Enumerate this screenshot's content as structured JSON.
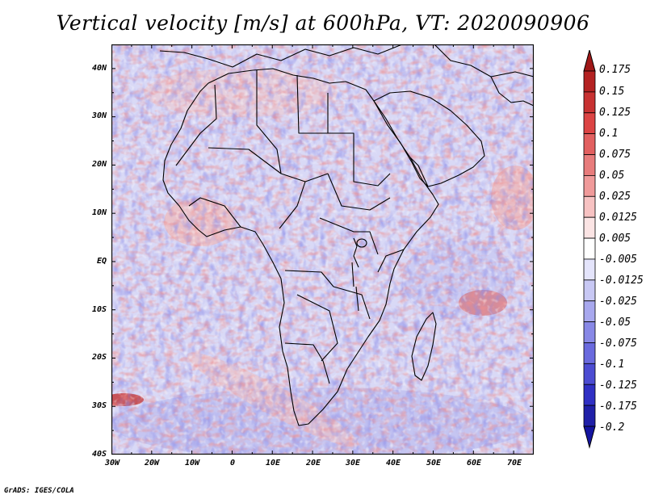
{
  "title": "Vertical velocity [m/s] at 600hPa, VT: 2020090906",
  "credit": "GrADS: IGES/COLA",
  "map": {
    "lon_range": [
      -30,
      75
    ],
    "lat_range": [
      -40,
      45
    ],
    "lat_labels": [
      "40N",
      "30N",
      "20N",
      "10N",
      "EQ",
      "10S",
      "20S",
      "30S",
      "40S"
    ],
    "lon_labels": [
      "30W",
      "20W",
      "10W",
      "0",
      "10E",
      "20E",
      "30E",
      "40E",
      "50E",
      "60E",
      "70E"
    ]
  },
  "colorbar": {
    "labels": [
      "0.175",
      "0.15",
      "0.125",
      "0.1",
      "0.075",
      "0.05",
      "0.025",
      "0.0125",
      "0.005",
      "-0.005",
      "-0.0125",
      "-0.025",
      "-0.05",
      "-0.075",
      "-0.1",
      "-0.125",
      "-0.175",
      "-0.2"
    ],
    "colors": [
      "#a01818",
      "#b42222",
      "#c83232",
      "#dc4444",
      "#e26060",
      "#e87c7c",
      "#f09a9a",
      "#f7c2c2",
      "#fbe4e4",
      "#ffffff",
      "#e4e4fb",
      "#c8c8f4",
      "#a8a8ee",
      "#8888e6",
      "#6a6ade",
      "#4c4cd2",
      "#3030c4",
      "#2020a8",
      "#1414a0"
    ]
  }
}
